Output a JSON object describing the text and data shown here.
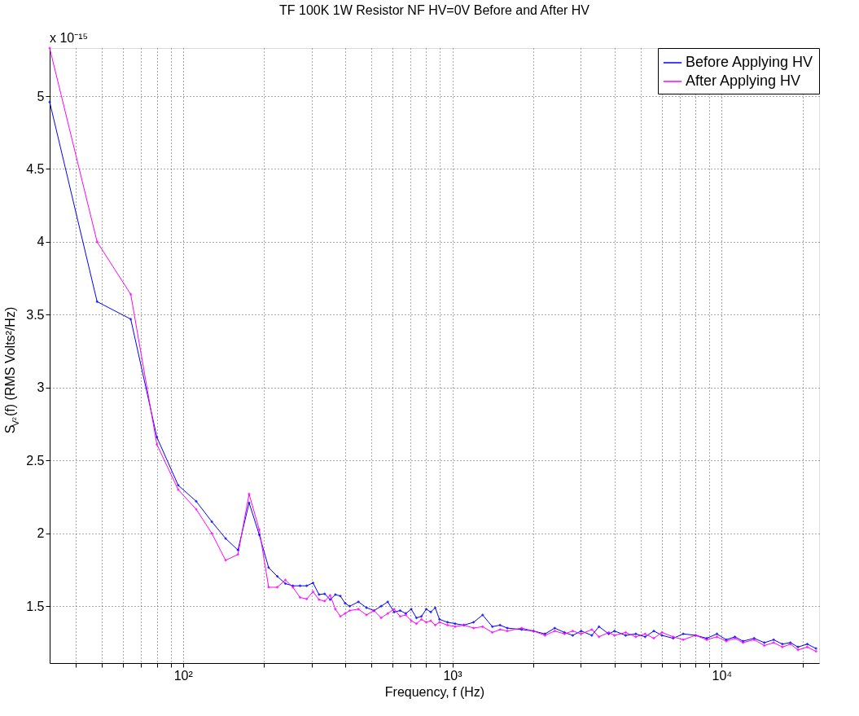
{
  "chart_data": {
    "type": "line",
    "title": "TF 100K 1W Resistor NF HV=0V Before and After HV",
    "xlabel": "Frequency, f (Hz)",
    "ylabel": "S$_{V²}$(f) (RMS Volts²/Hz)",
    "annotations": [
      "x 10⁻¹⁵"
    ],
    "log": "x",
    "grid": true,
    "legend": "top right",
    "marker": "diamond",
    "line_style": "solid",
    "xlim": [
      32,
      23000
    ],
    "ylim": [
      1.11,
      5.33
    ],
    "xticks": [
      {
        "value": 40,
        "label": null
      },
      {
        "value": 50,
        "label": null
      },
      {
        "value": 60,
        "label": null
      },
      {
        "value": 70,
        "label": null
      },
      {
        "value": 80,
        "label": null
      },
      {
        "value": 90,
        "label": null
      },
      {
        "value": 100,
        "label": "10²"
      },
      {
        "value": 200,
        "label": null
      },
      {
        "value": 300,
        "label": null
      },
      {
        "value": 400,
        "label": null
      },
      {
        "value": 500,
        "label": null
      },
      {
        "value": 600,
        "label": null
      },
      {
        "value": 700,
        "label": null
      },
      {
        "value": 800,
        "label": null
      },
      {
        "value": 900,
        "label": null
      },
      {
        "value": 1000,
        "label": "10³"
      },
      {
        "value": 2000,
        "label": null
      },
      {
        "value": 3000,
        "label": null
      },
      {
        "value": 4000,
        "label": null
      },
      {
        "value": 5000,
        "label": null
      },
      {
        "value": 6000,
        "label": null
      },
      {
        "value": 7000,
        "label": null
      },
      {
        "value": 8000,
        "label": null
      },
      {
        "value": 9000,
        "label": null
      },
      {
        "value": 10000,
        "label": "10⁴"
      },
      {
        "value": 20000,
        "label": null
      }
    ],
    "yticks": [
      1.5,
      2,
      2.5,
      3,
      3.5,
      4,
      4.5,
      5
    ],
    "x": [
      32,
      48,
      64,
      80,
      96,
      112,
      128,
      144,
      160,
      176,
      192,
      208,
      224,
      240,
      256,
      272,
      288,
      304,
      320,
      336,
      352,
      368,
      384,
      400,
      416,
      448,
      480,
      512,
      544,
      576,
      608,
      640,
      672,
      704,
      736,
      768,
      800,
      832,
      864,
      896,
      960,
      1024,
      1104,
      1200,
      1296,
      1408,
      1504,
      1600,
      1808,
      2000,
      2208,
      2400,
      2608,
      2800,
      3008,
      3296,
      3504,
      3808,
      4000,
      4400,
      4800,
      5200,
      5600,
      6000,
      6608,
      7200,
      8000,
      8800,
      9600,
      10400,
      11200,
      12000,
      13200,
      14400,
      15600,
      16800,
      18000,
      19200,
      20800,
      22400
    ],
    "series": [
      {
        "name": "Before Applying HV",
        "color": "#0000ff",
        "values": [
          4.96,
          3.59,
          3.47,
          2.66,
          2.33,
          2.22,
          2.08,
          1.965,
          1.885,
          2.21,
          1.99,
          1.765,
          1.705,
          1.655,
          1.64,
          1.64,
          1.64,
          1.66,
          1.58,
          1.585,
          1.545,
          1.58,
          1.57,
          1.52,
          1.5,
          1.53,
          1.49,
          1.47,
          1.5,
          1.53,
          1.46,
          1.47,
          1.45,
          1.48,
          1.42,
          1.43,
          1.48,
          1.46,
          1.49,
          1.41,
          1.39,
          1.38,
          1.37,
          1.39,
          1.44,
          1.36,
          1.37,
          1.35,
          1.34,
          1.33,
          1.31,
          1.35,
          1.32,
          1.3,
          1.33,
          1.3,
          1.36,
          1.31,
          1.33,
          1.3,
          1.31,
          1.29,
          1.33,
          1.3,
          1.28,
          1.31,
          1.3,
          1.28,
          1.31,
          1.27,
          1.29,
          1.26,
          1.28,
          1.25,
          1.27,
          1.24,
          1.25,
          1.22,
          1.24,
          1.21
        ]
      },
      {
        "name": "After Applying HV",
        "color": "#ff00ff",
        "values": [
          5.33,
          4.0,
          3.64,
          2.61,
          2.3,
          2.165,
          2.0,
          1.815,
          1.855,
          2.27,
          2.025,
          1.63,
          1.63,
          1.68,
          1.63,
          1.56,
          1.55,
          1.6,
          1.545,
          1.535,
          1.575,
          1.48,
          1.43,
          1.45,
          1.47,
          1.48,
          1.44,
          1.47,
          1.42,
          1.45,
          1.48,
          1.43,
          1.44,
          1.4,
          1.38,
          1.41,
          1.39,
          1.4,
          1.37,
          1.39,
          1.37,
          1.36,
          1.37,
          1.35,
          1.36,
          1.32,
          1.34,
          1.33,
          1.35,
          1.33,
          1.3,
          1.33,
          1.31,
          1.33,
          1.31,
          1.34,
          1.29,
          1.32,
          1.3,
          1.32,
          1.29,
          1.31,
          1.28,
          1.32,
          1.29,
          1.27,
          1.3,
          1.27,
          1.29,
          1.26,
          1.28,
          1.25,
          1.27,
          1.23,
          1.25,
          1.22,
          1.24,
          1.2,
          1.22,
          1.19
        ]
      }
    ]
  }
}
